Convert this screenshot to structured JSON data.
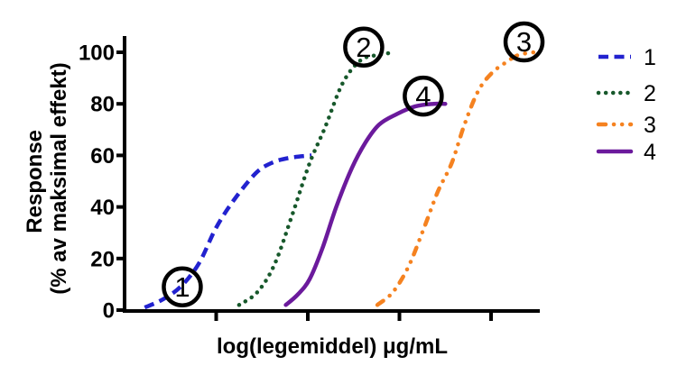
{
  "chart_data": {
    "type": "line",
    "title": "",
    "xlabel": "log(legemiddel) μg/mL",
    "ylabel_line1": "Response",
    "ylabel_line2": "(% av maksimal effekt)",
    "ylim": [
      0,
      100
    ],
    "y_ticks": [
      0,
      20,
      40,
      60,
      80,
      100
    ],
    "xlim": [
      0,
      4.55
    ],
    "x_ticks": [
      1,
      2,
      3,
      4
    ],
    "x_tick_labels_visible": false,
    "grid": false,
    "legend_position": "right-outside",
    "series": [
      {
        "name": "1",
        "color": "#2222cf",
        "style": "dashed",
        "plateau": 60,
        "points": [
          [
            0.22,
            1
          ],
          [
            0.41,
            4
          ],
          [
            0.61,
            9
          ],
          [
            0.81,
            18
          ],
          [
            1.0,
            32
          ],
          [
            1.2,
            43
          ],
          [
            1.43,
            53
          ],
          [
            1.6,
            57
          ],
          [
            1.79,
            59
          ],
          [
            2.04,
            60
          ]
        ]
      },
      {
        "name": "2",
        "color": "#17582b",
        "style": "dotted",
        "plateau": 100,
        "points": [
          [
            1.25,
            2
          ],
          [
            1.45,
            7
          ],
          [
            1.64,
            18
          ],
          [
            1.84,
            38
          ],
          [
            2.02,
            57
          ],
          [
            2.19,
            71
          ],
          [
            2.38,
            88
          ],
          [
            2.58,
            97
          ],
          [
            2.78,
            99
          ],
          [
            2.95,
            100
          ]
        ]
      },
      {
        "name": "3",
        "color": "#f58220",
        "style": "dash-dot-dot",
        "plateau": 100,
        "points": [
          [
            2.76,
            2
          ],
          [
            2.93,
            7
          ],
          [
            3.1,
            17
          ],
          [
            3.27,
            32
          ],
          [
            3.42,
            46
          ],
          [
            3.57,
            57
          ],
          [
            3.71,
            72
          ],
          [
            3.86,
            85
          ],
          [
            4.01,
            92
          ],
          [
            4.16,
            96
          ],
          [
            4.3,
            99
          ],
          [
            4.47,
            100
          ]
        ]
      },
      {
        "name": "4",
        "color": "#6b1a9c",
        "style": "solid",
        "plateau": 80,
        "points": [
          [
            1.76,
            2
          ],
          [
            1.89,
            6
          ],
          [
            2.02,
            12
          ],
          [
            2.16,
            24
          ],
          [
            2.31,
            40
          ],
          [
            2.48,
            55
          ],
          [
            2.63,
            65
          ],
          [
            2.78,
            72
          ],
          [
            2.97,
            76
          ],
          [
            3.17,
            79
          ],
          [
            3.37,
            80
          ],
          [
            3.5,
            80
          ]
        ]
      }
    ],
    "curve_markers": [
      {
        "label": "1",
        "x": 0.63,
        "y": 9
      },
      {
        "label": "2",
        "x": 2.61,
        "y": 102
      },
      {
        "label": "3",
        "x": 4.36,
        "y": 104
      },
      {
        "label": "4",
        "x": 3.26,
        "y": 83
      }
    ],
    "legend": [
      {
        "label": "1"
      },
      {
        "label": "2"
      },
      {
        "label": "3"
      },
      {
        "label": "4"
      }
    ]
  }
}
